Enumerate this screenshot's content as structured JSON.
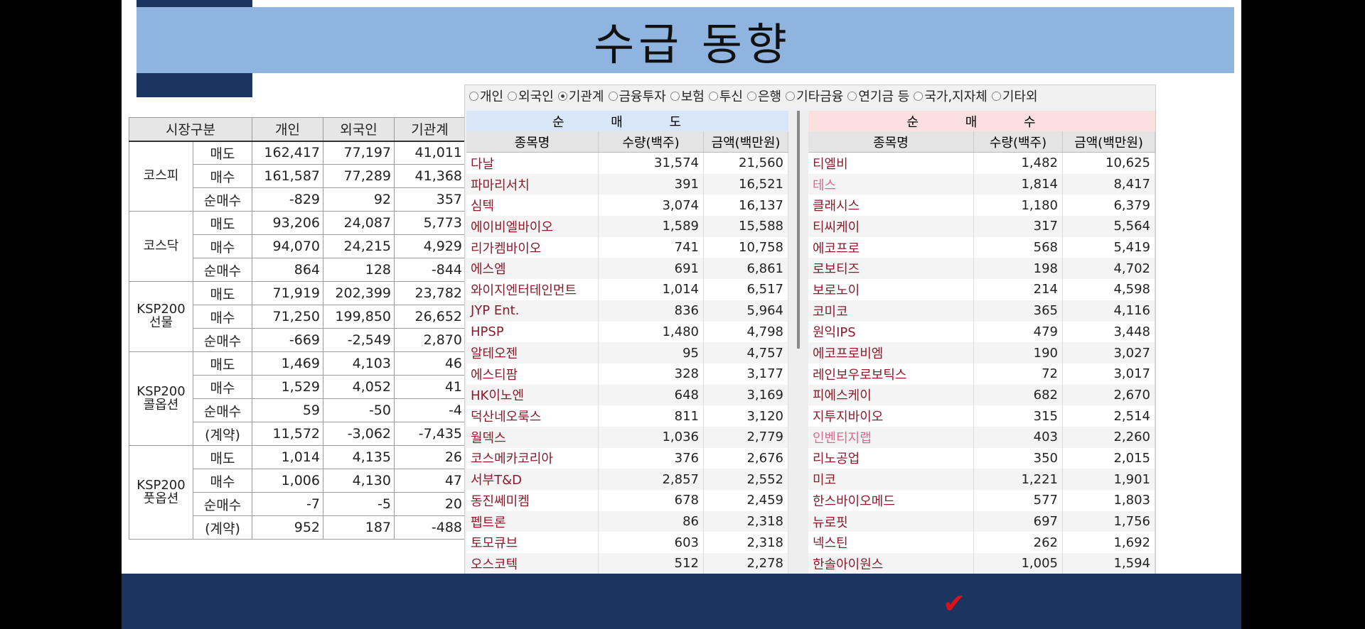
{
  "title": "수급 동향",
  "market_table": {
    "headers": [
      "시장구분",
      "개인",
      "외국인",
      "기관계"
    ],
    "groups": [
      {
        "name": "코스피",
        "rows": [
          {
            "label": "매도",
            "values": [
              "162,417",
              "77,197",
              "41,011"
            ]
          },
          {
            "label": "매수",
            "values": [
              "161,587",
              "77,289",
              "41,368"
            ]
          },
          {
            "label": "순매수",
            "values": [
              "-829",
              "92",
              "357"
            ]
          }
        ]
      },
      {
        "name": "코스닥",
        "rows": [
          {
            "label": "매도",
            "values": [
              "93,206",
              "24,087",
              "5,773"
            ]
          },
          {
            "label": "매수",
            "values": [
              "94,070",
              "24,215",
              "4,929"
            ]
          },
          {
            "label": "순매수",
            "values": [
              "864",
              "128",
              "-844"
            ]
          }
        ]
      },
      {
        "name": "KSP200\n선물",
        "rows": [
          {
            "label": "매도",
            "values": [
              "71,919",
              "202,399",
              "23,782"
            ]
          },
          {
            "label": "매수",
            "values": [
              "71,250",
              "199,850",
              "26,652"
            ]
          },
          {
            "label": "순매수",
            "values": [
              "-669",
              "-2,549",
              "2,870"
            ]
          }
        ]
      },
      {
        "name": "KSP200\n콜옵션",
        "rows": [
          {
            "label": "매도",
            "values": [
              "1,469",
              "4,103",
              "46"
            ]
          },
          {
            "label": "매수",
            "values": [
              "1,529",
              "4,052",
              "41"
            ]
          },
          {
            "label": "순매수",
            "values": [
              "59",
              "-50",
              "-4"
            ]
          },
          {
            "label": "(계약)",
            "values": [
              "11,572",
              "-3,062",
              "-7,435"
            ]
          }
        ]
      },
      {
        "name": "KSP200\n풋옵션",
        "rows": [
          {
            "label": "매도",
            "values": [
              "1,014",
              "4,135",
              "26"
            ]
          },
          {
            "label": "매수",
            "values": [
              "1,006",
              "4,130",
              "47"
            ]
          },
          {
            "label": "순매수",
            "values": [
              "-7",
              "-5",
              "20"
            ]
          },
          {
            "label": "(계약)",
            "values": [
              "952",
              "187",
              "-488"
            ]
          }
        ]
      }
    ]
  },
  "investor_filter": {
    "options": [
      "개인",
      "외국인",
      "기관계",
      "금융투자",
      "보험",
      "투신",
      "은행",
      "기타금융",
      "연기금 등",
      "국가,지자체",
      "기타외"
    ],
    "selected": "기관계"
  },
  "net_sell": {
    "title": "순 매 도",
    "columns": [
      "종목명",
      "수량(백주)",
      "금액(백만원)"
    ],
    "rows": [
      [
        "다날",
        "31,574",
        "21,560"
      ],
      [
        "파마리서치",
        "391",
        "16,521"
      ],
      [
        "심텍",
        "3,074",
        "16,137"
      ],
      [
        "에이비엘바이오",
        "1,589",
        "15,588"
      ],
      [
        "리가켐바이오",
        "741",
        "10,758"
      ],
      [
        "에스엠",
        "691",
        "6,861"
      ],
      [
        "와이지엔터테인먼트",
        "1,014",
        "6,517"
      ],
      [
        "JYP Ent.",
        "836",
        "5,964"
      ],
      [
        "HPSP",
        "1,480",
        "4,798"
      ],
      [
        "알테오젠",
        "95",
        "4,757"
      ],
      [
        "에스티팜",
        "328",
        "3,177"
      ],
      [
        "HK이노엔",
        "648",
        "3,169"
      ],
      [
        "덕산네오룩스",
        "811",
        "3,120"
      ],
      [
        "월덱스",
        "1,036",
        "2,779"
      ],
      [
        "코스메카코리아",
        "376",
        "2,676"
      ],
      [
        "서부T&D",
        "2,857",
        "2,552"
      ],
      [
        "동진쎄미켐",
        "678",
        "2,459"
      ],
      [
        "펩트론",
        "86",
        "2,318"
      ],
      [
        "토모큐브",
        "603",
        "2,318"
      ],
      [
        "오스코텍",
        "512",
        "2,278"
      ]
    ]
  },
  "net_buy": {
    "title": "순 매 수",
    "columns": [
      "종목명",
      "수량(백주)",
      "금액(백만원)"
    ],
    "rows": [
      [
        "티엘비",
        "1,482",
        "10,625"
      ],
      [
        "테스",
        "1,814",
        "8,417"
      ],
      [
        "클래시스",
        "1,180",
        "6,379"
      ],
      [
        "티씨케이",
        "317",
        "5,564"
      ],
      [
        "에코프로",
        "568",
        "5,419"
      ],
      [
        "로보티즈",
        "198",
        "4,702"
      ],
      [
        "보로노이",
        "214",
        "4,598"
      ],
      [
        "코미코",
        "365",
        "4,116"
      ],
      [
        "원익IPS",
        "479",
        "3,448"
      ],
      [
        "에코프로비엠",
        "190",
        "3,027"
      ],
      [
        "레인보우로보틱스",
        "72",
        "3,017"
      ],
      [
        "피에스케이",
        "682",
        "2,670"
      ],
      [
        "지투지바이오",
        "315",
        "2,514"
      ],
      [
        "인벤티지랩",
        "403",
        "2,260"
      ],
      [
        "리노공업",
        "350",
        "2,015"
      ],
      [
        "미코",
        "1,221",
        "1,901"
      ],
      [
        "한스바이오메드",
        "577",
        "1,803"
      ],
      [
        "뉴로핏",
        "697",
        "1,756"
      ],
      [
        "넥스틴",
        "262",
        "1,692"
      ],
      [
        "한솔아이원스",
        "1,005",
        "1,594"
      ]
    ],
    "highlight_pink": [
      "테스",
      "인벤티지랩"
    ]
  },
  "colors": {
    "title_bar": "#8fb4e0",
    "navy": "#1c3560",
    "positive": "#d0101a",
    "negative": "#1a55c8",
    "stock_name": "#8b1a2b"
  }
}
